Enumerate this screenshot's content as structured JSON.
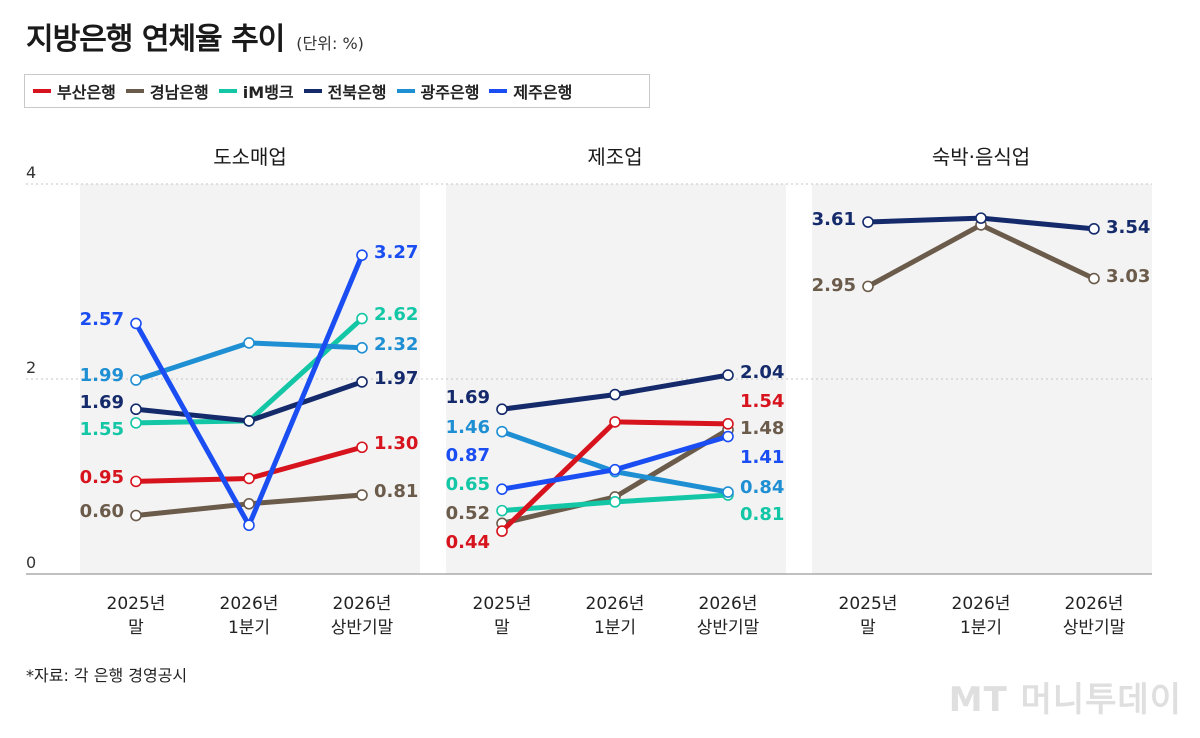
{
  "header": {
    "title": "지방은행 연체율 추이",
    "unit": "(단위: %)"
  },
  "legend": [
    {
      "name": "부산은행",
      "color": "#d7141e"
    },
    {
      "name": "경남은행",
      "color": "#6b5b4b"
    },
    {
      "name": "iM뱅크",
      "color": "#13c6a5"
    },
    {
      "name": "전북은행",
      "color": "#142a6b"
    },
    {
      "name": "광주은행",
      "color": "#1f8fd3"
    },
    {
      "name": "제주은행",
      "color": "#1a4df2"
    }
  ],
  "chart_data": {
    "type": "line",
    "ylim": [
      0,
      4
    ],
    "y_ticks": [
      0,
      2,
      4
    ],
    "categories": [
      "2025년 말",
      "2026년 1분기",
      "2026년 상반기말"
    ],
    "category_lines": [
      [
        "2025년",
        "말"
      ],
      [
        "2026년",
        "1분기"
      ],
      [
        "2026년",
        "상반기말"
      ]
    ],
    "grid": "dotted at 2 and 4",
    "panels": [
      {
        "title": "도소매업",
        "series": [
          {
            "name": "부산은행",
            "values": [
              0.95,
              0.98,
              1.3
            ],
            "start_label": "0.95",
            "end_label": "1.30"
          },
          {
            "name": "경남은행",
            "values": [
              0.6,
              0.72,
              0.81
            ],
            "start_label": "0.60",
            "end_label": "0.81"
          },
          {
            "name": "iM뱅크",
            "values": [
              1.55,
              1.57,
              2.62
            ],
            "start_label": "1.55",
            "end_label": "2.62"
          },
          {
            "name": "전북은행",
            "values": [
              1.69,
              1.57,
              1.97
            ],
            "start_label": "1.69",
            "end_label": "1.97"
          },
          {
            "name": "광주은행",
            "values": [
              1.99,
              2.37,
              2.32
            ],
            "start_label": "1.99",
            "end_label": "2.32"
          },
          {
            "name": "제주은행",
            "values": [
              2.57,
              0.5,
              3.27
            ],
            "start_label": "2.57",
            "end_label": "3.27"
          }
        ]
      },
      {
        "title": "제조업",
        "series": [
          {
            "name": "부산은행",
            "values": [
              0.44,
              1.56,
              1.54
            ],
            "start_label": "0.44",
            "end_label": "1.54"
          },
          {
            "name": "경남은행",
            "values": [
              0.52,
              0.79,
              1.48
            ],
            "start_label": "0.52",
            "end_label": "1.48"
          },
          {
            "name": "iM뱅크",
            "values": [
              0.65,
              0.74,
              0.81
            ],
            "start_label": "0.65",
            "end_label": "0.81"
          },
          {
            "name": "전북은행",
            "values": [
              1.69,
              1.84,
              2.04
            ],
            "start_label": "1.69",
            "end_label": "2.04"
          },
          {
            "name": "광주은행",
            "values": [
              1.46,
              1.05,
              0.84
            ],
            "start_label": "1.46",
            "end_label": "0.84"
          },
          {
            "name": "제주은행",
            "values": [
              0.87,
              1.07,
              1.41
            ],
            "start_label": "0.87",
            "end_label": "1.41"
          }
        ]
      },
      {
        "title": "숙박·음식업",
        "series": [
          {
            "name": "경남은행",
            "values": [
              2.95,
              3.58,
              3.03
            ],
            "start_label": "2.95",
            "end_label": "3.03"
          },
          {
            "name": "전북은행",
            "values": [
              3.61,
              3.65,
              3.54
            ],
            "start_label": "3.61",
            "end_label": "3.54"
          }
        ]
      }
    ]
  },
  "footer": {
    "source": "*자료: 각 은행 경영공시",
    "watermark": "MT 머니투데이"
  }
}
